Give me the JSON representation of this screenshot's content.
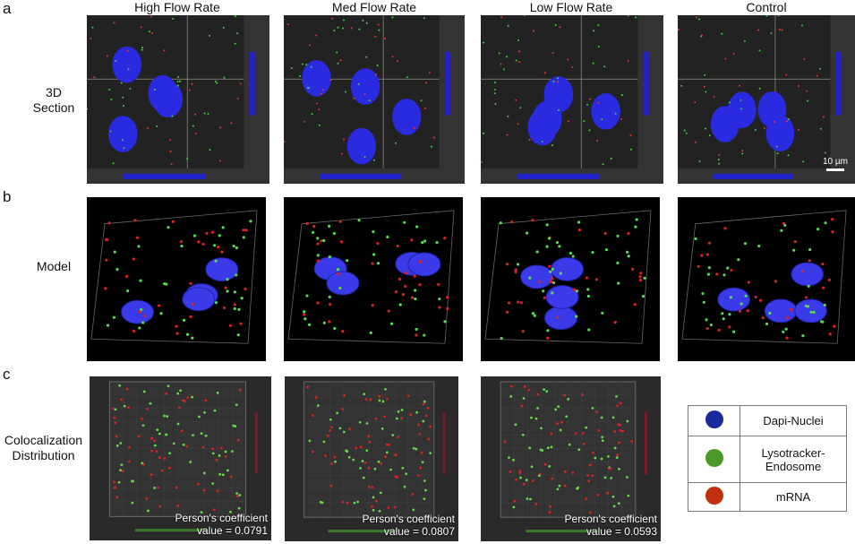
{
  "panel_labels": {
    "a": "a",
    "b": "b",
    "c": "c"
  },
  "row_labels": {
    "section": [
      "3D",
      "Section"
    ],
    "model": "Model",
    "coloc": [
      "Colocalization",
      "Distribution"
    ]
  },
  "columns": [
    "High Flow Rate",
    "Med Flow Rate",
    "Low Flow Rate",
    "Control"
  ],
  "scale_bar": "10 µm",
  "coloc_panels": [
    {
      "label": "Person's coefficient",
      "value": "value = 0.0791"
    },
    {
      "label": "Person's coefficient",
      "value": "value = 0.0807"
    },
    {
      "label": "Person's coefficient",
      "value": "value = 0.0593"
    }
  ],
  "legend": [
    {
      "label": "Dapi-Nuclei",
      "color": "#1a2a9a"
    },
    {
      "label": "Lysotracker-Endosome",
      "color": "#4a9a2a"
    },
    {
      "label": "mRNA",
      "color": "#c0300f"
    }
  ]
}
